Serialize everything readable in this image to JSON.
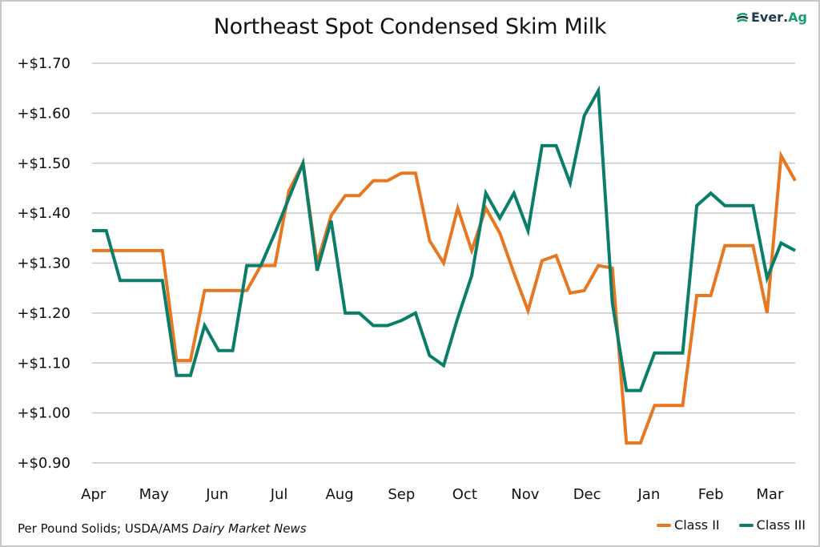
{
  "logo": {
    "brand_left": "Ever",
    "brand_dot": ".",
    "brand_right": "Ag"
  },
  "source_note": {
    "prefix": "Per Pound Solids; USDA/AMS ",
    "italic": "Dairy Market News"
  },
  "colors": {
    "class_ii": "#e87722",
    "class_iii": "#0a7e6a",
    "grid": "#c8c8c8"
  },
  "chart_data": {
    "type": "line",
    "title": "Northeast Spot Condensed Skim Milk",
    "xlabel": "",
    "ylabel": "",
    "ylim": [
      0.9,
      1.7
    ],
    "yticks": [
      1.7,
      1.6,
      1.5,
      1.4,
      1.3,
      1.2,
      1.1,
      1.0,
      0.9
    ],
    "ytick_labels": [
      "+$1.70",
      "+$1.60",
      "+$1.50",
      "+$1.40",
      "+$1.30",
      "+$1.20",
      "+$1.10",
      "+$1.00",
      "+$0.90"
    ],
    "x_month_labels": [
      "Apr",
      "May",
      "Jun",
      "Jul",
      "Aug",
      "Sep",
      "Oct",
      "Nov",
      "Dec",
      "Jan",
      "Feb",
      "Mar"
    ],
    "x_month_label_index": [
      0.1,
      4.4,
      8.9,
      13.3,
      17.6,
      22.0,
      26.5,
      30.8,
      35.2,
      39.6,
      44.0,
      48.2
    ],
    "grid": true,
    "legend": "bottom-right",
    "series": [
      {
        "name": "Class II",
        "color": "#e87722",
        "values": [
          1.325,
          1.325,
          1.325,
          1.325,
          1.325,
          1.325,
          1.105,
          1.105,
          1.245,
          1.245,
          1.245,
          1.245,
          1.295,
          1.295,
          1.445,
          1.5,
          1.3,
          1.395,
          1.435,
          1.435,
          1.465,
          1.465,
          1.48,
          1.48,
          1.345,
          1.3,
          1.41,
          1.325,
          1.41,
          1.36,
          1.28,
          1.205,
          1.305,
          1.315,
          1.24,
          1.245,
          1.295,
          1.29,
          0.94,
          0.94,
          1.015,
          1.015,
          1.015,
          1.235,
          1.235,
          1.335,
          1.335,
          1.335,
          1.2,
          1.515,
          1.465
        ]
      },
      {
        "name": "Class III",
        "color": "#0a7e6a",
        "values": [
          1.365,
          1.365,
          1.265,
          1.265,
          1.265,
          1.265,
          1.075,
          1.075,
          1.175,
          1.125,
          1.125,
          1.295,
          1.295,
          1.36,
          1.43,
          1.5,
          1.285,
          1.385,
          1.2,
          1.2,
          1.175,
          1.175,
          1.185,
          1.2,
          1.115,
          1.095,
          1.19,
          1.275,
          1.44,
          1.39,
          1.44,
          1.365,
          1.535,
          1.535,
          1.46,
          1.595,
          1.645,
          1.22,
          1.045,
          1.045,
          1.12,
          1.12,
          1.12,
          1.415,
          1.44,
          1.415,
          1.415,
          1.415,
          1.27,
          1.34,
          1.325
        ]
      }
    ]
  }
}
